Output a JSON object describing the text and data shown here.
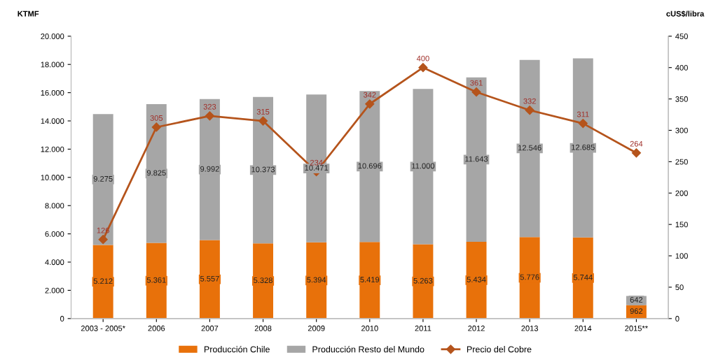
{
  "chart_data": {
    "type": "bar",
    "stacked": true,
    "ylabel": "KTMF",
    "y2label": "cUS$/libra",
    "categories": [
      "2003 - 2005*",
      "2006",
      "2007",
      "2008",
      "2009",
      "2010",
      "2011",
      "2012",
      "2013",
      "2014",
      "2015**"
    ],
    "series": [
      {
        "name": "Producción Chile",
        "color": "#e8710a",
        "values": [
          5212,
          5361,
          5557,
          5328,
          5394,
          5419,
          5263,
          5434,
          5776,
          5744,
          962
        ],
        "value_labels": [
          "5.212",
          "5.361",
          "5.557",
          "5.328",
          "5.394",
          "5.419",
          "5.263",
          "5.434",
          "5.776",
          "5.744",
          "962"
        ]
      },
      {
        "name": "Producción Resto del Mundo",
        "color": "#a6a6a6",
        "values": [
          9275,
          9825,
          9992,
          10373,
          10471,
          10696,
          11000,
          11643,
          12546,
          12685,
          642
        ],
        "value_labels": [
          "9.275",
          "9.825",
          "9.992",
          "10.373",
          "10.471",
          "10.696",
          "11.000",
          "11.643",
          "12.546",
          "12.685",
          "642"
        ]
      },
      {
        "name": "Precio del Cobre",
        "type": "line",
        "axis": "y2",
        "color": "#b5541c",
        "marker": "diamond",
        "values": [
          126,
          305,
          323,
          315,
          234,
          342,
          400,
          361,
          332,
          311,
          264
        ],
        "value_labels": [
          "126",
          "305",
          "323",
          "315",
          "234",
          "342",
          "400",
          "361",
          "332",
          "311",
          "264"
        ]
      }
    ],
    "ylim": [
      0,
      20000
    ],
    "yticks": [
      {
        "value": 0,
        "label": "0"
      },
      {
        "value": 2000,
        "label": "2.000"
      },
      {
        "value": 4000,
        "label": "4.000"
      },
      {
        "value": 6000,
        "label": "6.000"
      },
      {
        "value": 8000,
        "label": "8.000"
      },
      {
        "value": 10000,
        "label": "10.000"
      },
      {
        "value": 12000,
        "label": "12.000"
      },
      {
        "value": 14000,
        "label": "14.000"
      },
      {
        "value": 16000,
        "label": "16.000"
      },
      {
        "value": 18000,
        "label": "18.000"
      },
      {
        "value": 20000,
        "label": "20.000"
      }
    ],
    "y2lim": [
      0,
      450
    ],
    "y2ticks": [
      0,
      50,
      100,
      150,
      200,
      250,
      300,
      350,
      400,
      450
    ],
    "grid": false,
    "legend": "bottom"
  }
}
